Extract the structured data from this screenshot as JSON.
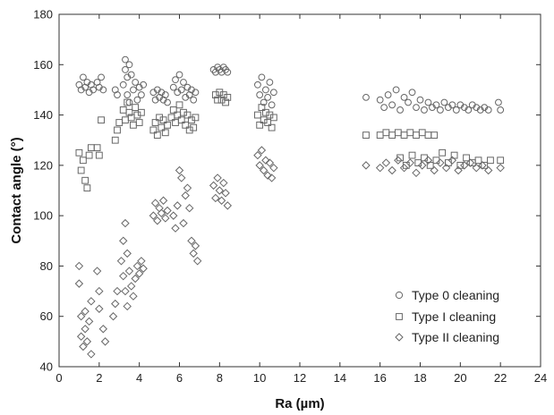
{
  "chart_data": {
    "type": "scatter",
    "xlabel": "Ra (µm)",
    "ylabel": "Contact angle (°)",
    "xlim": [
      0,
      24
    ],
    "ylim": [
      40,
      180
    ],
    "xticks": [
      "0",
      "2",
      "4",
      "6",
      "8",
      "10",
      "12",
      "14",
      "16",
      "18",
      "20",
      "22",
      "24"
    ],
    "yticks": [
      "40",
      "60",
      "80",
      "100",
      "120",
      "140",
      "160",
      "180"
    ],
    "grid": false,
    "legend_position": "bottom-right",
    "marker_color": "#666666",
    "series": [
      {
        "name": "Type 0 cleaning",
        "marker": "circle",
        "points": [
          [
            1.0,
            152
          ],
          [
            1.1,
            150
          ],
          [
            1.2,
            155
          ],
          [
            1.3,
            151
          ],
          [
            1.4,
            153
          ],
          [
            1.5,
            149
          ],
          [
            1.6,
            152
          ],
          [
            1.7,
            150
          ],
          [
            1.9,
            153
          ],
          [
            2.0,
            151
          ],
          [
            2.1,
            155
          ],
          [
            2.2,
            150
          ],
          [
            2.8,
            150
          ],
          [
            2.9,
            148
          ],
          [
            3.2,
            152
          ],
          [
            3.3,
            158
          ],
          [
            3.3,
            162
          ],
          [
            3.4,
            155
          ],
          [
            3.4,
            148
          ],
          [
            3.5,
            160
          ],
          [
            3.5,
            145
          ],
          [
            3.6,
            156
          ],
          [
            3.7,
            150
          ],
          [
            3.8,
            153
          ],
          [
            3.9,
            146
          ],
          [
            4.0,
            151
          ],
          [
            4.1,
            148
          ],
          [
            4.2,
            152
          ],
          [
            4.7,
            149
          ],
          [
            4.8,
            146
          ],
          [
            4.9,
            150
          ],
          [
            5.0,
            147
          ],
          [
            5.1,
            149
          ],
          [
            5.2,
            146
          ],
          [
            5.3,
            148
          ],
          [
            5.4,
            145
          ],
          [
            5.7,
            151
          ],
          [
            5.8,
            154
          ],
          [
            5.9,
            149
          ],
          [
            6.0,
            156
          ],
          [
            6.1,
            150
          ],
          [
            6.2,
            153
          ],
          [
            6.3,
            147
          ],
          [
            6.4,
            151
          ],
          [
            6.5,
            148
          ],
          [
            6.6,
            150
          ],
          [
            6.7,
            146
          ],
          [
            6.8,
            149
          ],
          [
            7.7,
            158
          ],
          [
            7.8,
            157
          ],
          [
            7.9,
            159
          ],
          [
            8.0,
            158
          ],
          [
            8.1,
            157
          ],
          [
            8.2,
            159
          ],
          [
            8.3,
            158
          ],
          [
            8.4,
            157
          ],
          [
            9.9,
            152
          ],
          [
            10.0,
            148
          ],
          [
            10.1,
            155
          ],
          [
            10.2,
            145
          ],
          [
            10.3,
            150
          ],
          [
            10.4,
            147
          ],
          [
            10.5,
            153
          ],
          [
            10.6,
            144
          ],
          [
            10.7,
            149
          ],
          [
            15.3,
            147
          ],
          [
            16.0,
            146
          ],
          [
            16.2,
            143
          ],
          [
            16.4,
            148
          ],
          [
            16.6,
            144
          ],
          [
            16.8,
            150
          ],
          [
            17.0,
            142
          ],
          [
            17.2,
            147
          ],
          [
            17.4,
            145
          ],
          [
            17.6,
            149
          ],
          [
            17.8,
            143
          ],
          [
            18.0,
            146
          ],
          [
            18.2,
            142
          ],
          [
            18.4,
            145
          ],
          [
            18.6,
            143
          ],
          [
            18.8,
            144
          ],
          [
            19.0,
            142
          ],
          [
            19.2,
            145
          ],
          [
            19.4,
            143
          ],
          [
            19.6,
            144
          ],
          [
            19.8,
            142
          ],
          [
            20.0,
            144
          ],
          [
            20.2,
            143
          ],
          [
            20.4,
            142
          ],
          [
            20.6,
            144
          ],
          [
            20.8,
            143
          ],
          [
            21.0,
            142
          ],
          [
            21.2,
            143
          ],
          [
            21.4,
            142
          ],
          [
            21.9,
            145
          ],
          [
            22.0,
            142
          ]
        ]
      },
      {
        "name": "Type I cleaning",
        "marker": "square",
        "points": [
          [
            1.0,
            125
          ],
          [
            1.1,
            118
          ],
          [
            1.2,
            122
          ],
          [
            1.3,
            114
          ],
          [
            1.4,
            111
          ],
          [
            1.5,
            124
          ],
          [
            1.6,
            127
          ],
          [
            1.9,
            127
          ],
          [
            2.0,
            124
          ],
          [
            2.1,
            138
          ],
          [
            2.8,
            130
          ],
          [
            2.9,
            134
          ],
          [
            3.0,
            137
          ],
          [
            3.2,
            142
          ],
          [
            3.3,
            138
          ],
          [
            3.4,
            145
          ],
          [
            3.5,
            141
          ],
          [
            3.6,
            139
          ],
          [
            3.7,
            136
          ],
          [
            3.8,
            143
          ],
          [
            3.9,
            140
          ],
          [
            4.0,
            137
          ],
          [
            4.1,
            141
          ],
          [
            4.7,
            134
          ],
          [
            4.8,
            137
          ],
          [
            4.9,
            132
          ],
          [
            5.0,
            139
          ],
          [
            5.1,
            135
          ],
          [
            5.2,
            138
          ],
          [
            5.3,
            133
          ],
          [
            5.4,
            136
          ],
          [
            5.6,
            139
          ],
          [
            5.7,
            142
          ],
          [
            5.8,
            137
          ],
          [
            5.9,
            140
          ],
          [
            6.0,
            144
          ],
          [
            6.1,
            138
          ],
          [
            6.2,
            141
          ],
          [
            6.3,
            136
          ],
          [
            6.4,
            140
          ],
          [
            6.5,
            134
          ],
          [
            6.6,
            138
          ],
          [
            6.7,
            135
          ],
          [
            6.8,
            139
          ],
          [
            7.8,
            148
          ],
          [
            7.9,
            146
          ],
          [
            8.0,
            149
          ],
          [
            8.1,
            146
          ],
          [
            8.2,
            148
          ],
          [
            8.3,
            145
          ],
          [
            8.4,
            147
          ],
          [
            9.9,
            140
          ],
          [
            10.0,
            136
          ],
          [
            10.1,
            143
          ],
          [
            10.2,
            138
          ],
          [
            10.3,
            141
          ],
          [
            10.4,
            137
          ],
          [
            10.5,
            140
          ],
          [
            10.6,
            135
          ],
          [
            10.7,
            139
          ],
          [
            15.3,
            132
          ],
          [
            16.0,
            132
          ],
          [
            16.3,
            133
          ],
          [
            16.6,
            132
          ],
          [
            16.9,
            133
          ],
          [
            17.2,
            132
          ],
          [
            17.5,
            133
          ],
          [
            17.8,
            132
          ],
          [
            18.1,
            133
          ],
          [
            18.4,
            132
          ],
          [
            18.7,
            132
          ],
          [
            17.0,
            123
          ],
          [
            17.3,
            120
          ],
          [
            17.6,
            124
          ],
          [
            17.9,
            121
          ],
          [
            18.2,
            123
          ],
          [
            18.5,
            120
          ],
          [
            18.8,
            122
          ],
          [
            19.1,
            125
          ],
          [
            19.4,
            121
          ],
          [
            19.7,
            124
          ],
          [
            20.0,
            120
          ],
          [
            20.3,
            123
          ],
          [
            20.6,
            121
          ],
          [
            20.9,
            122
          ],
          [
            21.2,
            120
          ],
          [
            21.5,
            122
          ],
          [
            22.0,
            122
          ]
        ]
      },
      {
        "name": "Type II cleaning",
        "marker": "diamond",
        "points": [
          [
            1.0,
            80
          ],
          [
            1.0,
            73
          ],
          [
            1.1,
            60
          ],
          [
            1.1,
            52
          ],
          [
            1.2,
            48
          ],
          [
            1.3,
            55
          ],
          [
            1.3,
            62
          ],
          [
            1.4,
            50
          ],
          [
            1.5,
            58
          ],
          [
            1.6,
            45
          ],
          [
            1.6,
            66
          ],
          [
            1.9,
            78
          ],
          [
            2.0,
            70
          ],
          [
            2.0,
            63
          ],
          [
            2.2,
            55
          ],
          [
            2.3,
            50
          ],
          [
            2.7,
            60
          ],
          [
            2.8,
            65
          ],
          [
            2.9,
            70
          ],
          [
            3.1,
            82
          ],
          [
            3.2,
            90
          ],
          [
            3.2,
            76
          ],
          [
            3.3,
            97
          ],
          [
            3.3,
            70
          ],
          [
            3.4,
            85
          ],
          [
            3.4,
            64
          ],
          [
            3.5,
            78
          ],
          [
            3.6,
            72
          ],
          [
            3.7,
            68
          ],
          [
            3.8,
            75
          ],
          [
            3.9,
            80
          ],
          [
            4.0,
            77
          ],
          [
            4.1,
            82
          ],
          [
            4.2,
            79
          ],
          [
            4.7,
            100
          ],
          [
            4.8,
            105
          ],
          [
            4.9,
            98
          ],
          [
            5.0,
            103
          ],
          [
            5.1,
            101
          ],
          [
            5.2,
            106
          ],
          [
            5.3,
            99
          ],
          [
            5.4,
            102
          ],
          [
            5.7,
            100
          ],
          [
            5.8,
            95
          ],
          [
            5.9,
            104
          ],
          [
            6.0,
            118
          ],
          [
            6.1,
            115
          ],
          [
            6.2,
            97
          ],
          [
            6.3,
            108
          ],
          [
            6.4,
            111
          ],
          [
            6.5,
            103
          ],
          [
            6.6,
            90
          ],
          [
            6.7,
            85
          ],
          [
            6.8,
            88
          ],
          [
            6.9,
            82
          ],
          [
            7.7,
            112
          ],
          [
            7.8,
            107
          ],
          [
            7.9,
            115
          ],
          [
            8.0,
            110
          ],
          [
            8.1,
            106
          ],
          [
            8.2,
            113
          ],
          [
            8.3,
            109
          ],
          [
            8.4,
            104
          ],
          [
            9.9,
            124
          ],
          [
            10.0,
            120
          ],
          [
            10.1,
            126
          ],
          [
            10.2,
            118
          ],
          [
            10.3,
            122
          ],
          [
            10.4,
            116
          ],
          [
            10.5,
            121
          ],
          [
            10.6,
            115
          ],
          [
            10.7,
            119
          ],
          [
            15.3,
            120
          ],
          [
            16.0,
            119
          ],
          [
            16.3,
            121
          ],
          [
            16.6,
            118
          ],
          [
            16.9,
            122
          ],
          [
            17.2,
            119
          ],
          [
            17.5,
            121
          ],
          [
            17.8,
            117
          ],
          [
            18.1,
            120
          ],
          [
            18.4,
            122
          ],
          [
            18.7,
            118
          ],
          [
            19.0,
            121
          ],
          [
            19.3,
            119
          ],
          [
            19.6,
            122
          ],
          [
            19.9,
            118
          ],
          [
            20.2,
            120
          ],
          [
            20.5,
            121
          ],
          [
            20.8,
            119
          ],
          [
            21.1,
            120
          ],
          [
            21.4,
            118
          ],
          [
            22.0,
            119
          ]
        ]
      }
    ]
  }
}
